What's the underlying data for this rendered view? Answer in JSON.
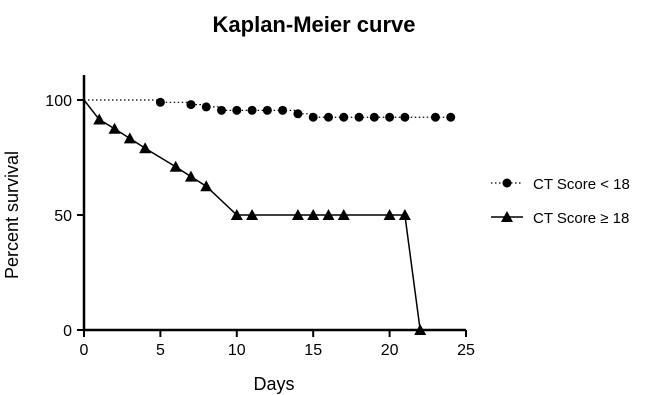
{
  "chart_data": {
    "type": "line",
    "title": "Kaplan-Meier curve",
    "xlabel": "Days",
    "ylabel": "Percent survival",
    "xlim": [
      0,
      25
    ],
    "ylim": [
      0,
      110
    ],
    "xticks": [
      0,
      5,
      10,
      15,
      20,
      25
    ],
    "yticks": [
      0,
      50,
      100
    ],
    "grid": false,
    "legend_position": "right",
    "series": [
      {
        "name": "CT Score < 18",
        "marker": "circle",
        "line_style": "dotted",
        "line_type": "step",
        "color": "#000000",
        "step_points": [
          [
            0,
            100
          ],
          [
            5,
            99
          ],
          [
            7,
            98
          ],
          [
            8,
            97
          ],
          [
            9,
            95.5
          ],
          [
            14,
            94
          ],
          [
            15,
            92.5
          ],
          [
            24,
            92.5
          ]
        ],
        "markers": [
          [
            5,
            99
          ],
          [
            7,
            98
          ],
          [
            8,
            97
          ],
          [
            9,
            95.5
          ],
          [
            10,
            95.5
          ],
          [
            11,
            95.5
          ],
          [
            12,
            95.5
          ],
          [
            13,
            95.5
          ],
          [
            14,
            94
          ],
          [
            15,
            92.5
          ],
          [
            16,
            92.5
          ],
          [
            17,
            92.5
          ],
          [
            18,
            92.5
          ],
          [
            19,
            92.5
          ],
          [
            20,
            92.5
          ],
          [
            21,
            92.5
          ],
          [
            23,
            92.5
          ],
          [
            24,
            92.5
          ]
        ]
      },
      {
        "name": "CT Score ≥ 18",
        "marker": "triangle",
        "line_style": "solid",
        "line_type": "straight",
        "color": "#000000",
        "line_points": [
          [
            0,
            100
          ],
          [
            1,
            91.5
          ],
          [
            2,
            87.5
          ],
          [
            3,
            83.3
          ],
          [
            4,
            79
          ],
          [
            6,
            71
          ],
          [
            7,
            66.7
          ],
          [
            8,
            62.5
          ],
          [
            10,
            50
          ],
          [
            11,
            50
          ],
          [
            14,
            50
          ],
          [
            15,
            50
          ],
          [
            16,
            50
          ],
          [
            17,
            50
          ],
          [
            20,
            50
          ],
          [
            21,
            50
          ],
          [
            22,
            0
          ]
        ],
        "markers": [
          [
            1,
            91.5
          ],
          [
            2,
            87.5
          ],
          [
            3,
            83.3
          ],
          [
            4,
            79
          ],
          [
            6,
            71
          ],
          [
            7,
            66.7
          ],
          [
            8,
            62.5
          ],
          [
            10,
            50
          ],
          [
            11,
            50
          ],
          [
            14,
            50
          ],
          [
            15,
            50
          ],
          [
            16,
            50
          ],
          [
            17,
            50
          ],
          [
            20,
            50
          ],
          [
            21,
            50
          ],
          [
            22,
            0
          ]
        ]
      }
    ]
  }
}
